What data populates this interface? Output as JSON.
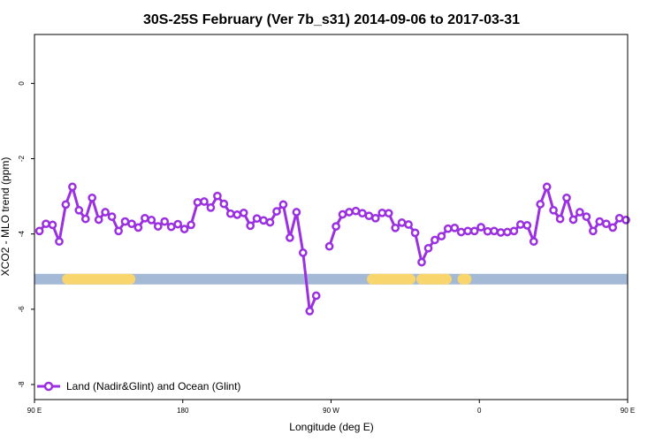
{
  "chart_data": {
    "type": "line",
    "title": "30S-25S February (Ver 7b_s31)   2014-09-06 to 2017-03-31",
    "xlabel": "Longitude (deg E)",
    "ylabel": "XCO2 - MLO trend (ppm)",
    "xlim": [
      90,
      450
    ],
    "ylim": [
      -8.4,
      1.3
    ],
    "x_ticks": [
      {
        "value": 90,
        "label": "90 E"
      },
      {
        "value": 180,
        "label": "180"
      },
      {
        "value": 270,
        "label": "90 W"
      },
      {
        "value": 360,
        "label": "0"
      },
      {
        "value": 450,
        "label": "90 E"
      },
      {
        "value": 540,
        "label": "180"
      }
    ],
    "y_ticks": [
      {
        "value": 0,
        "label": "0"
      },
      {
        "value": -2,
        "label": "-2"
      },
      {
        "value": -4,
        "label": "-4"
      },
      {
        "value": -6,
        "label": "-6"
      },
      {
        "value": -8,
        "label": "-8"
      }
    ],
    "legend": {
      "placement": "bottom-left",
      "entries": [
        "Land (Nadir&Glint) and Ocean (Glint)"
      ]
    },
    "colors": {
      "series": "#9b30e0",
      "ocean": "#a3b9d6",
      "land": "#f9d56e"
    },
    "surface_band": {
      "y": -5.2,
      "land_segments": [
        [
          110,
          148
        ],
        [
          295,
          318
        ],
        [
          325,
          340
        ],
        [
          350,
          352
        ],
        [
          480,
          518
        ]
      ]
    },
    "series": [
      {
        "name": "Land (Nadir&Glint) and Ocean (Glint)",
        "segments": [
          [
            [
              93,
              -3.92
            ],
            [
              97,
              -3.73
            ],
            [
              101,
              -3.76
            ],
            [
              105,
              -4.2
            ],
            [
              109,
              -3.22
            ],
            [
              113,
              -2.75
            ],
            [
              117,
              -3.37
            ],
            [
              121,
              -3.6
            ],
            [
              125,
              -3.04
            ],
            [
              129,
              -3.62
            ],
            [
              133,
              -3.42
            ],
            [
              137,
              -3.54
            ],
            [
              141,
              -3.92
            ],
            [
              145,
              -3.67
            ],
            [
              149,
              -3.73
            ],
            [
              153,
              -3.83
            ],
            [
              157,
              -3.58
            ],
            [
              161,
              -3.63
            ],
            [
              165,
              -3.8
            ],
            [
              169,
              -3.67
            ],
            [
              173,
              -3.81
            ],
            [
              177,
              -3.74
            ],
            [
              181,
              -3.87
            ],
            [
              185,
              -3.76
            ],
            [
              189,
              -3.16
            ],
            [
              193,
              -3.14
            ],
            [
              197,
              -3.3
            ],
            [
              201,
              -2.99
            ],
            [
              205,
              -3.2
            ],
            [
              209,
              -3.46
            ],
            [
              213,
              -3.49
            ],
            [
              217,
              -3.44
            ],
            [
              221,
              -3.78
            ],
            [
              225,
              -3.59
            ],
            [
              229,
              -3.64
            ],
            [
              233,
              -3.69
            ],
            [
              237,
              -3.4
            ],
            [
              241,
              -3.22
            ],
            [
              245,
              -4.1
            ],
            [
              249,
              -3.42
            ],
            [
              253,
              -4.5
            ],
            [
              257,
              -6.05
            ],
            [
              261,
              -5.64
            ]
          ],
          [
            [
              269,
              -4.33
            ],
            [
              273,
              -3.8
            ],
            [
              277,
              -3.48
            ],
            [
              281,
              -3.42
            ],
            [
              285,
              -3.39
            ],
            [
              289,
              -3.45
            ],
            [
              293,
              -3.52
            ],
            [
              297,
              -3.58
            ],
            [
              301,
              -3.44
            ],
            [
              305,
              -3.45
            ],
            [
              309,
              -3.84
            ],
            [
              313,
              -3.7
            ],
            [
              317,
              -3.75
            ],
            [
              321,
              -3.97
            ],
            [
              325,
              -4.75
            ],
            [
              329,
              -4.38
            ],
            [
              333,
              -4.16
            ],
            [
              337,
              -4.06
            ],
            [
              341,
              -3.86
            ],
            [
              345,
              -3.84
            ],
            [
              349,
              -3.95
            ],
            [
              353,
              -3.92
            ],
            [
              357,
              -3.92
            ],
            [
              361,
              -3.82
            ],
            [
              365,
              -3.93
            ],
            [
              369,
              -3.92
            ],
            [
              373,
              -3.96
            ],
            [
              377,
              -3.95
            ],
            [
              381,
              -3.92
            ],
            [
              385,
              -3.75
            ],
            [
              389,
              -3.77
            ],
            [
              393,
              -4.2
            ],
            [
              397,
              -3.21
            ],
            [
              401,
              -2.75
            ],
            [
              405,
              -3.37
            ],
            [
              409,
              -3.6
            ],
            [
              413,
              -3.04
            ],
            [
              417,
              -3.62
            ],
            [
              421,
              -3.42
            ],
            [
              425,
              -3.54
            ],
            [
              429,
              -3.92
            ],
            [
              433,
              -3.67
            ],
            [
              437,
              -3.73
            ],
            [
              441,
              -3.83
            ],
            [
              445,
              -3.58
            ],
            [
              449,
              -3.63
            ]
          ]
        ]
      }
    ]
  }
}
